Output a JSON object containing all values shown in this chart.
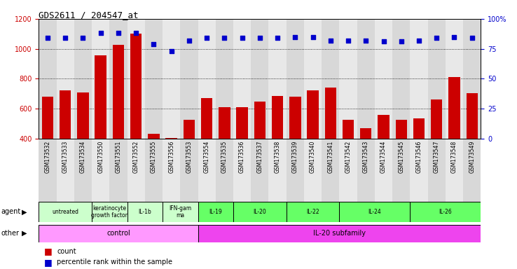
{
  "title": "GDS2611 / 204547_at",
  "samples": [
    "GSM173532",
    "GSM173533",
    "GSM173534",
    "GSM173550",
    "GSM173551",
    "GSM173552",
    "GSM173555",
    "GSM173556",
    "GSM173553",
    "GSM173554",
    "GSM173535",
    "GSM173536",
    "GSM173537",
    "GSM173538",
    "GSM173539",
    "GSM173540",
    "GSM173541",
    "GSM173542",
    "GSM173543",
    "GSM173544",
    "GSM173545",
    "GSM173546",
    "GSM173547",
    "GSM173548",
    "GSM173549"
  ],
  "counts": [
    680,
    720,
    710,
    955,
    1025,
    1100,
    430,
    405,
    525,
    670,
    610,
    610,
    645,
    685,
    680,
    720,
    740,
    525,
    470,
    560,
    525,
    535,
    660,
    810,
    705
  ],
  "percentile": [
    84,
    84,
    84,
    88,
    88,
    88,
    79,
    73,
    82,
    84,
    84,
    84,
    84,
    84,
    85,
    85,
    82,
    82,
    82,
    81,
    81,
    82,
    84,
    85,
    84
  ],
  "bar_color": "#cc0000",
  "dot_color": "#0000cc",
  "ylim_left": [
    400,
    1200
  ],
  "ylim_right": [
    0,
    100
  ],
  "yticks_left": [
    400,
    600,
    800,
    1000,
    1200
  ],
  "yticks_right": [
    0,
    25,
    50,
    75,
    100
  ],
  "grid_lines": [
    600,
    800,
    1000
  ],
  "agent_groups": [
    {
      "label": "untreated",
      "start": 0,
      "end": 3,
      "color": "#ccffcc"
    },
    {
      "label": "keratinocyte\ngrowth factor",
      "start": 3,
      "end": 5,
      "color": "#ccffcc"
    },
    {
      "label": "IL-1b",
      "start": 5,
      "end": 7,
      "color": "#ccffcc"
    },
    {
      "label": "IFN-gam\nma",
      "start": 7,
      "end": 9,
      "color": "#ccffcc"
    },
    {
      "label": "IL-19",
      "start": 9,
      "end": 11,
      "color": "#66ff66"
    },
    {
      "label": "IL-20",
      "start": 11,
      "end": 14,
      "color": "#66ff66"
    },
    {
      "label": "IL-22",
      "start": 14,
      "end": 17,
      "color": "#66ff66"
    },
    {
      "label": "IL-24",
      "start": 17,
      "end": 21,
      "color": "#66ff66"
    },
    {
      "label": "IL-26",
      "start": 21,
      "end": 25,
      "color": "#66ff66"
    }
  ],
  "other_groups": [
    {
      "label": "control",
      "start": 0,
      "end": 9,
      "color": "#ff99ff"
    },
    {
      "label": "IL-20 subfamily",
      "start": 9,
      "end": 25,
      "color": "#ee44ee"
    }
  ],
  "left_labels": [
    "agent",
    "other"
  ],
  "legend": [
    {
      "color": "#cc0000",
      "label": "count"
    },
    {
      "color": "#0000cc",
      "label": "percentile rank within the sample"
    }
  ]
}
